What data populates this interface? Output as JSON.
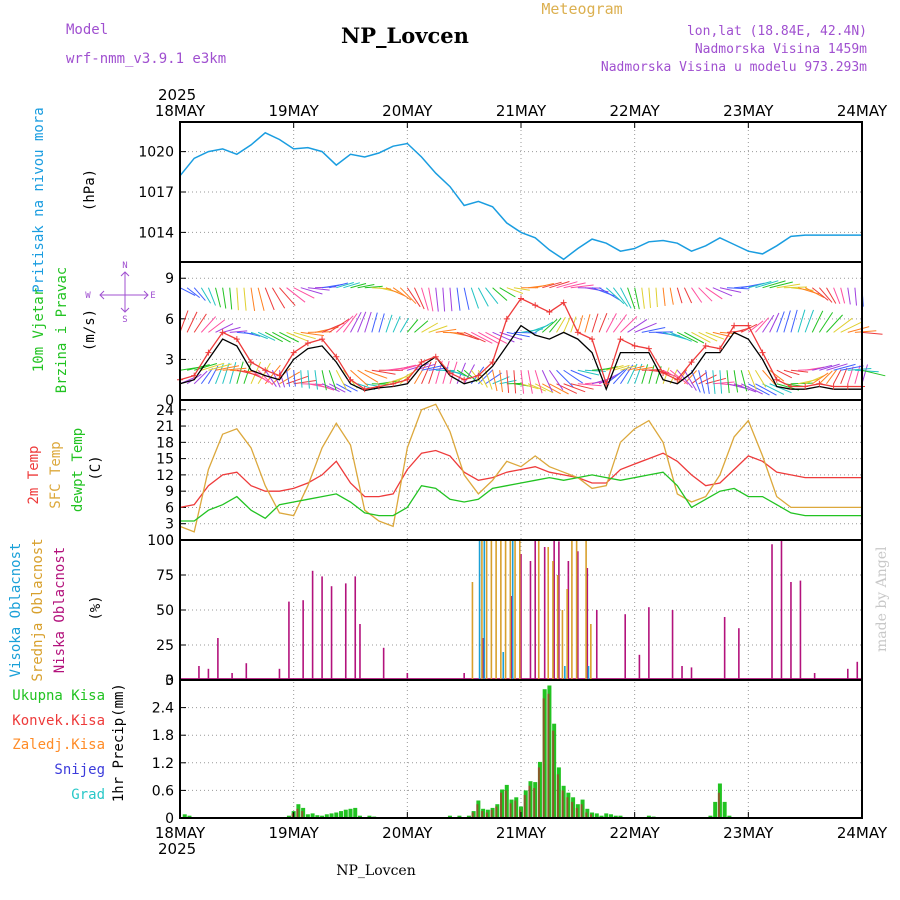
{
  "header": {
    "model_label": "Model",
    "model_name": "wrf-nmm_v3.9.1 e3km",
    "title": "NP_Lovcen",
    "product": "Meteogram",
    "lonlat": "lon,lat (18.84E, 42.4N)",
    "elevation": "Nadmorska Visina 1459m",
    "model_elevation": "Nadmorska Visina u modelu 973.293m",
    "footer_title": "NP_Lovcen",
    "credit": "made by Angel",
    "year_top": "2025",
    "year_bottom": "2025"
  },
  "colors": {
    "pressure": "#1a9de0",
    "wind_label": "#22c322",
    "wind_speed": "#ee3b3b",
    "wind_black": "#000000",
    "temp2m": "#ee3b3b",
    "sfc": "#dca83c",
    "dewpt": "#22c322",
    "high_cloud": "#1aa0d8",
    "mid_cloud": "#d8a02c",
    "low_cloud": "#b3127c",
    "total_precip": "#22c322",
    "conv_precip": "#ee3b3b",
    "frz_precip": "#ff8c28",
    "snow": "#3c3cdc",
    "grad": "#28c8c8",
    "model_text": "#a050d0",
    "meteogram": "#dcb050",
    "credit": "#c8c8c8"
  },
  "chart_data": [
    {
      "type": "line",
      "panel": "pressure",
      "ylabel": "Pritisak na nivou mora",
      "unit": "(hPa)",
      "ylim": [
        1011.8,
        1022.2
      ],
      "yticks": [
        1014,
        1017,
        1020
      ],
      "xticks": [
        "18MAY",
        "19MAY",
        "20MAY",
        "21MAY",
        "22MAY",
        "23MAY",
        "24MAY"
      ],
      "x_hours": [
        0,
        3,
        6,
        9,
        12,
        15,
        18,
        21,
        24,
        27,
        30,
        33,
        36,
        39,
        42,
        45,
        48,
        51,
        54,
        57,
        60,
        63,
        66,
        69,
        72,
        75,
        78,
        81,
        84,
        87,
        90,
        93,
        96,
        99,
        102,
        105,
        108,
        111,
        114,
        117,
        120,
        123,
        126,
        129,
        132,
        135,
        138,
        141,
        144
      ],
      "series": [
        {
          "name": "Pritisak",
          "values": [
            1018.2,
            1019.5,
            1020.0,
            1020.2,
            1019.8,
            1020.5,
            1021.4,
            1020.9,
            1020.2,
            1020.3,
            1020.0,
            1019.0,
            1019.8,
            1019.6,
            1019.9,
            1020.4,
            1020.6,
            1019.6,
            1018.4,
            1017.4,
            1016.0,
            1016.3,
            1015.9,
            1014.7,
            1014.0,
            1013.6,
            1012.7,
            1012.0,
            1012.8,
            1013.5,
            1013.2,
            1012.6,
            1012.8,
            1013.3,
            1013.4,
            1013.2,
            1012.6,
            1013.0,
            1013.6,
            1013.1,
            1012.6,
            1012.4,
            1013.0,
            1013.7,
            1013.8,
            1013.8,
            1013.8,
            1013.8,
            1013.8
          ]
        }
      ]
    },
    {
      "type": "line",
      "panel": "wind",
      "ylabel": "10m Vjetar",
      "ylabel2": "Brzina i Pravac",
      "unit": "(m/s)",
      "ylim": [
        0,
        10.2
      ],
      "yticks": [
        0,
        3,
        6,
        9
      ],
      "compass": {
        "n": "N",
        "w": "W",
        "e": "E",
        "s": "S"
      },
      "x_hours": [
        0,
        3,
        6,
        9,
        12,
        15,
        18,
        21,
        24,
        27,
        30,
        33,
        36,
        39,
        42,
        45,
        48,
        51,
        54,
        57,
        60,
        63,
        66,
        69,
        72,
        75,
        78,
        81,
        84,
        87,
        90,
        93,
        96,
        99,
        102,
        105,
        108,
        111,
        114,
        117,
        120,
        123,
        126,
        129,
        132,
        135,
        138,
        141,
        144
      ],
      "barb_rows_ms": [
        1.2,
        2.2,
        5.0,
        8.3
      ],
      "series": [
        {
          "name": "Brzina (crveno)",
          "values": [
            1.5,
            1.8,
            3.5,
            5.0,
            4.5,
            2.8,
            2.2,
            1.8,
            3.5,
            4.2,
            4.5,
            3.2,
            1.5,
            0.8,
            1.0,
            1.2,
            1.5,
            2.8,
            3.2,
            2.0,
            1.5,
            1.8,
            2.8,
            6.0,
            7.5,
            7.0,
            6.5,
            7.2,
            5.0,
            4.5,
            1.2,
            4.5,
            4.0,
            3.8,
            2.0,
            1.5,
            2.8,
            4.0,
            3.8,
            5.5,
            5.5,
            3.5,
            1.5,
            1.0,
            1.0,
            1.2,
            1.0,
            1.0,
            1.0
          ]
        },
        {
          "name": "Brzina (crno)",
          "values": [
            1.2,
            1.5,
            3.0,
            4.5,
            4.0,
            2.2,
            1.8,
            1.5,
            3.0,
            3.8,
            4.0,
            2.8,
            1.2,
            0.7,
            0.9,
            1.0,
            1.2,
            2.5,
            3.2,
            1.8,
            1.2,
            1.5,
            2.5,
            4.0,
            5.5,
            4.8,
            4.5,
            5.0,
            4.5,
            3.5,
            0.8,
            3.5,
            3.5,
            3.5,
            1.5,
            1.2,
            2.0,
            3.5,
            3.5,
            5.0,
            4.5,
            3.0,
            1.0,
            0.8,
            0.8,
            1.0,
            0.8,
            0.8,
            0.8
          ]
        }
      ]
    },
    {
      "type": "line",
      "panel": "temperature",
      "ylabels": [
        "2m Temp",
        "SFC Temp",
        "dewpt Temp"
      ],
      "unit": "(C)",
      "ylim": [
        0,
        25.8
      ],
      "yticks": [
        0,
        3,
        6,
        9,
        12,
        15,
        18,
        21,
        24
      ],
      "x_hours": [
        0,
        3,
        6,
        9,
        12,
        15,
        18,
        21,
        24,
        27,
        30,
        33,
        36,
        39,
        42,
        45,
        48,
        51,
        54,
        57,
        60,
        63,
        66,
        69,
        72,
        75,
        78,
        81,
        84,
        87,
        90,
        93,
        96,
        99,
        102,
        105,
        108,
        111,
        114,
        117,
        120,
        123,
        126,
        129,
        132,
        135,
        138,
        141,
        144
      ],
      "series": [
        {
          "name": "2m Temp",
          "values": [
            6.0,
            6.5,
            10.0,
            12.0,
            12.5,
            10.0,
            9.0,
            9.0,
            9.5,
            10.5,
            12.0,
            14.5,
            10.5,
            8.0,
            8.0,
            8.5,
            13.0,
            16.0,
            16.5,
            15.5,
            12.5,
            11.0,
            11.5,
            12.5,
            13.0,
            13.5,
            12.5,
            12.0,
            11.5,
            10.5,
            10.5,
            13.0,
            14.0,
            15.0,
            16.0,
            14.5,
            12.0,
            10.0,
            10.5,
            13.0,
            15.5,
            14.5,
            12.5,
            12.0,
            11.5,
            11.5,
            11.5,
            11.5,
            11.5
          ]
        },
        {
          "name": "SFC Temp",
          "values": [
            2.5,
            1.5,
            13.0,
            19.5,
            20.5,
            17.0,
            10.0,
            5.0,
            4.5,
            10.0,
            17.0,
            21.5,
            17.5,
            5.5,
            3.5,
            2.5,
            17.0,
            24.0,
            25.0,
            20.0,
            12.0,
            8.5,
            11.0,
            14.5,
            13.5,
            15.5,
            13.5,
            12.5,
            11.5,
            9.5,
            10.0,
            18.0,
            20.5,
            22.0,
            18.0,
            8.5,
            7.0,
            8.0,
            12.0,
            19.0,
            22.0,
            15.5,
            8.0,
            6.0,
            6.0,
            6.0,
            6.0,
            6.0,
            6.0
          ]
        },
        {
          "name": "dewpt Temp",
          "values": [
            3.5,
            3.5,
            5.5,
            6.5,
            8.0,
            5.5,
            4.0,
            6.5,
            7.0,
            7.5,
            8.0,
            8.5,
            7.0,
            5.0,
            4.5,
            4.5,
            6.0,
            10.0,
            9.5,
            7.5,
            7.0,
            7.5,
            9.5,
            10.0,
            10.5,
            11.0,
            11.5,
            11.0,
            11.5,
            12.0,
            11.5,
            11.0,
            11.5,
            12.0,
            12.5,
            10.0,
            6.0,
            7.5,
            9.0,
            9.5,
            8.0,
            8.0,
            6.5,
            5.0,
            4.5,
            4.5,
            4.5,
            4.5,
            4.5
          ]
        }
      ]
    },
    {
      "type": "bar",
      "panel": "clouds",
      "ylabels": [
        "Visoka Oblacnost",
        "Srednja Oblacnost",
        "Niska Oblacnost"
      ],
      "unit": "(%)",
      "ylim": [
        0,
        100
      ],
      "yticks": [
        0,
        25,
        50,
        75,
        100
      ],
      "series": [
        {
          "name": "Niska Oblacnost",
          "hours": [
            4,
            6,
            8,
            11,
            14,
            21,
            23,
            26,
            28,
            30,
            32,
            35,
            37,
            38,
            43,
            48,
            60,
            64,
            70,
            72,
            74,
            75,
            77,
            79,
            80,
            82,
            84,
            86,
            88,
            94,
            97,
            99,
            104,
            106,
            108,
            115,
            118,
            127,
            125,
            129,
            131,
            134,
            141,
            143
          ],
          "values": [
            10,
            8,
            30,
            5,
            12,
            8,
            56,
            57,
            78,
            74,
            67,
            69,
            74,
            40,
            23,
            5,
            5,
            30,
            60,
            90,
            85,
            100,
            95,
            100,
            99,
            85,
            92,
            80,
            50,
            47,
            18,
            52,
            50,
            10,
            9,
            45,
            37,
            100,
            97,
            70,
            71,
            5,
            8,
            13
          ]
        },
        {
          "name": "Srednja Oblacnost",
          "hours": [
            62,
            64,
            65,
            66,
            67,
            68,
            69,
            70,
            71,
            72,
            76,
            78,
            79,
            80,
            81,
            82,
            83,
            84,
            86,
            87
          ],
          "values": [
            70,
            100,
            100,
            100,
            100,
            100,
            100,
            100,
            100,
            100,
            100,
            95,
            85,
            75,
            50,
            65,
            100,
            100,
            100,
            40
          ]
        },
        {
          "name": "Visoka Oblacnost",
          "hours": [
            63,
            64,
            68,
            70,
            81,
            86
          ],
          "values": [
            100,
            100,
            20,
            100,
            10,
            10
          ]
        }
      ]
    },
    {
      "type": "bar",
      "panel": "precip",
      "ylabel": "1hr Precip",
      "unit": "(mm)",
      "ylim": [
        0,
        3.0
      ],
      "yticks": [
        0,
        0.6,
        1.2,
        1.8,
        2.4,
        3
      ],
      "legend": [
        "Ukupna Kisa",
        "Konvek.Kisa",
        "Zaledj.Kisa",
        "Snijeg",
        "Grad"
      ],
      "xticks_bottom": [
        "18MAY",
        "19MAY",
        "20MAY",
        "21MAY",
        "22MAY",
        "23MAY",
        "24MAY"
      ],
      "series": [
        {
          "name": "Ukupna Kisa",
          "hours": [
            1,
            2,
            23,
            24,
            25,
            26,
            27,
            28,
            29,
            30,
            31,
            32,
            33,
            34,
            35,
            36,
            37,
            38,
            40,
            41,
            57,
            58,
            59,
            60,
            61,
            62,
            63,
            64,
            65,
            66,
            67,
            68,
            69,
            70,
            71,
            72,
            73,
            74,
            75,
            76,
            77,
            78,
            79,
            80,
            81,
            82,
            83,
            84,
            85,
            86,
            87,
            88,
            89,
            90,
            91,
            92,
            93,
            95,
            96,
            97,
            98,
            99,
            100,
            112,
            113,
            114,
            115,
            116,
            117,
            118
          ],
          "values": [
            0.08,
            0.05,
            0.05,
            0.15,
            0.3,
            0.22,
            0.08,
            0.1,
            0.06,
            0.05,
            0.08,
            0.1,
            0.12,
            0.15,
            0.18,
            0.2,
            0.22,
            0.05,
            0.05,
            0.03,
            0.05,
            0.02,
            0.05,
            0.02,
            0.05,
            0.15,
            0.38,
            0.2,
            0.18,
            0.22,
            0.3,
            0.62,
            0.72,
            0.4,
            0.45,
            0.25,
            0.6,
            0.8,
            0.78,
            1.22,
            2.8,
            2.88,
            2.05,
            1.1,
            0.7,
            0.55,
            0.45,
            0.3,
            0.4,
            0.2,
            0.12,
            0.1,
            0.05,
            0.1,
            0.08,
            0.05,
            0.05,
            0.02,
            0.02,
            0.02,
            0.02,
            0.05,
            0.03,
            0.05,
            0.35,
            0.75,
            0.35,
            0.05,
            0.02,
            0.02
          ]
        },
        {
          "name": "Konvek.Kisa",
          "hours": [
            24,
            25,
            26,
            62,
            63,
            64,
            65,
            66,
            67,
            68,
            69,
            70,
            71,
            72,
            73,
            74,
            75,
            76,
            77,
            78,
            79,
            80,
            81,
            82,
            83,
            84,
            85,
            86,
            87,
            114
          ],
          "values": [
            0.1,
            0.2,
            0.15,
            0.12,
            0.3,
            0.15,
            0.12,
            0.18,
            0.25,
            0.55,
            0.6,
            0.32,
            0.38,
            0.18,
            0.5,
            0.7,
            0.65,
            1.1,
            2.6,
            2.7,
            1.9,
            0.95,
            0.6,
            0.45,
            0.35,
            0.22,
            0.3,
            0.12,
            0.08,
            0.55
          ]
        }
      ]
    }
  ]
}
